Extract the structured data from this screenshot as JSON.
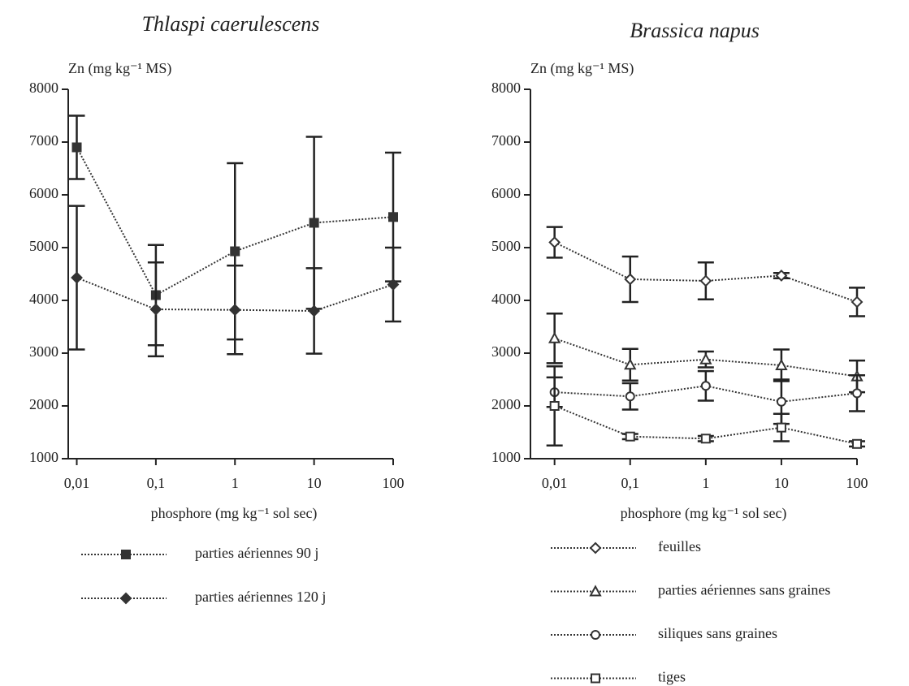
{
  "chart_data": [
    {
      "type": "line",
      "title": "Thlaspi caerulescens",
      "ylabel": "Zn (mg kg⁻¹ MS)",
      "xlabel": "phosphore (mg kg⁻¹ sol sec)",
      "x": [
        0.01,
        0.1,
        1,
        10,
        100
      ],
      "log_x": true,
      "xlim": [
        0.0078,
        100
      ],
      "xticks": [
        {
          "value": 0.01,
          "label": "0,01"
        },
        {
          "value": 0.1,
          "label": "0,1"
        },
        1,
        10,
        100
      ],
      "ylim": [
        1000,
        8000
      ],
      "yticks": [
        1000,
        2000,
        3000,
        4000,
        5000,
        6000,
        7000,
        8000
      ],
      "series": [
        {
          "name": "parties aériennes 90 j",
          "color": "#333333",
          "marker": "square",
          "filled": true,
          "values": [
            6900,
            4100,
            4930,
            5470,
            5580
          ],
          "errors": [
            600,
            950,
            1670,
            1630,
            1220
          ]
        },
        {
          "name": "parties aériennes 120 j",
          "color": "#333333",
          "marker": "diamond",
          "filled": true,
          "values": [
            4430,
            3830,
            3820,
            3800,
            4300
          ],
          "errors": [
            1360,
            890,
            840,
            810,
            700
          ]
        }
      ]
    },
    {
      "type": "line",
      "title": "Brassica napus",
      "ylabel": "Zn (mg kg⁻¹ MS)",
      "xlabel": "phosphore (mg kg⁻¹ sol sec)",
      "x": [
        0.01,
        0.1,
        1,
        10,
        100
      ],
      "log_x": true,
      "xlim": [
        0.0048,
        100
      ],
      "xticks": [
        {
          "value": 0.01,
          "label": "0,01"
        },
        {
          "value": 0.1,
          "label": "0,1"
        },
        1,
        10,
        100
      ],
      "ylim": [
        1000,
        8000
      ],
      "yticks": [
        1000,
        2000,
        3000,
        4000,
        5000,
        6000,
        7000,
        8000
      ],
      "series": [
        {
          "name": "feuilles",
          "color": "#333333",
          "marker": "diamond",
          "filled": false,
          "values": [
            5100,
            4400,
            4370,
            4470,
            3970
          ],
          "errors": [
            290,
            430,
            350,
            50,
            270
          ]
        },
        {
          "name": "parties aériennes sans graines",
          "color": "#333333",
          "marker": "triangle",
          "filled": false,
          "values": [
            3280,
            2780,
            2880,
            2770,
            2560
          ],
          "errors": [
            470,
            300,
            150,
            300,
            300
          ]
        },
        {
          "name": "siliques sans graines",
          "color": "#333333",
          "marker": "circle",
          "filled": false,
          "values": [
            2260,
            2180,
            2380,
            2080,
            2240
          ],
          "errors": [
            280,
            250,
            280,
            420,
            340
          ]
        },
        {
          "name": "tiges",
          "color": "#333333",
          "marker": "square",
          "filled": false,
          "values": [
            2000,
            1420,
            1380,
            1590,
            1280
          ],
          "errors": [
            750,
            50,
            50,
            260,
            50
          ]
        }
      ]
    }
  ]
}
